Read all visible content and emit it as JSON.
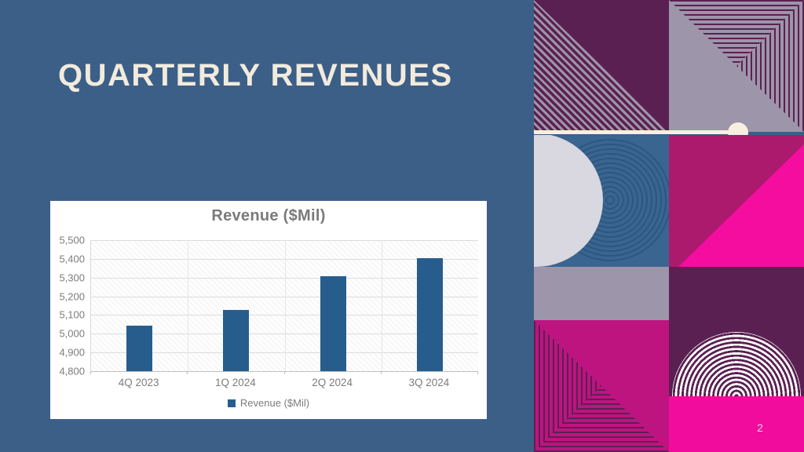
{
  "slide": {
    "title": "QUARTERLY REVENUES",
    "page_number": "2"
  },
  "colors": {
    "slide_background": "#3c5f88",
    "title_cream": "#f2ebdc",
    "bar_blue": "#275d8d",
    "chart_text_gray": "#7c7c7c",
    "deco_purple": "#5b2052",
    "deco_gray_lavender": "#9d95aa",
    "deco_magenta": "#b4156f",
    "deco_bright_pink": "#f50da0",
    "deco_tile_blue": "#3a6590",
    "accent_cream": "#f6f0e1"
  },
  "chart_data": {
    "type": "bar",
    "title": "Revenue ($Mil)",
    "categories": [
      "4Q 2023",
      "1Q 2024",
      "2Q 2024",
      "3Q 2024"
    ],
    "values": [
      5045,
      5128,
      5308,
      5405
    ],
    "xlabel": "",
    "ylabel": "",
    "ylim": [
      4800,
      5500
    ],
    "ytick_step": 100,
    "grid": true,
    "legend": [
      "Revenue ($Mil)"
    ],
    "legend_position": "bottom",
    "bar_color": "#275d8d"
  }
}
